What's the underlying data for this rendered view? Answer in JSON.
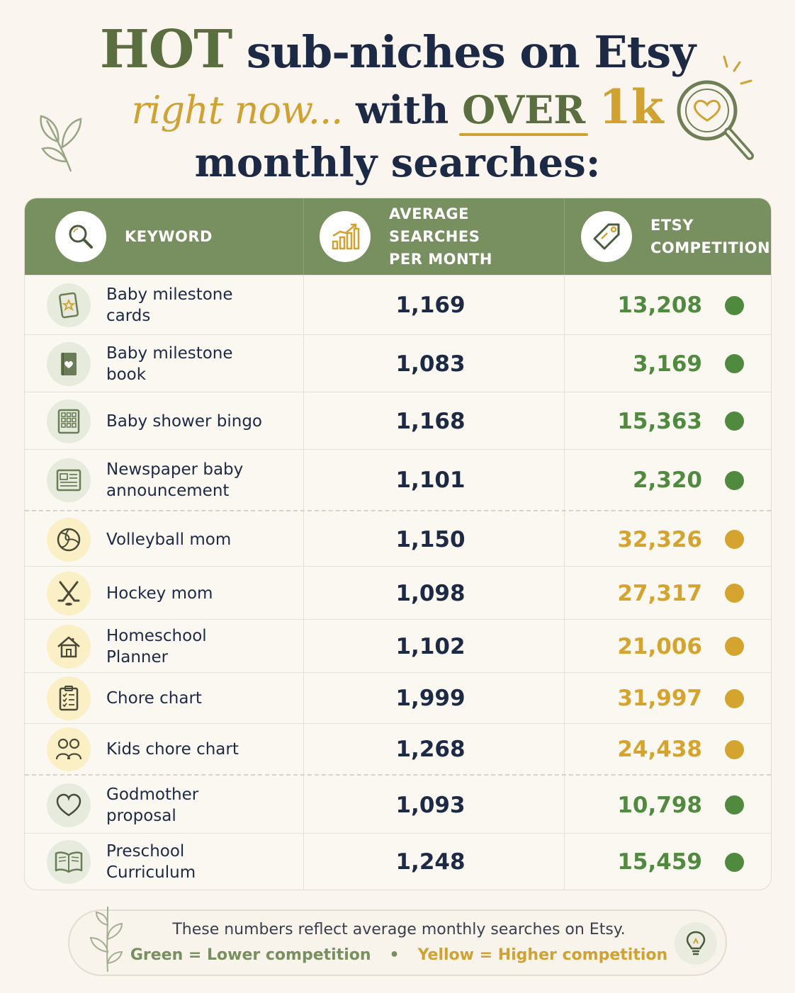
{
  "title": {
    "hot": "HOT",
    "line1_rest": "sub-niches on Etsy",
    "script": "right now...",
    "with": "with",
    "over": "OVER",
    "onek": "1k",
    "line3": "monthly searches:"
  },
  "table": {
    "headers": {
      "keyword": "KEYWORD",
      "avg_line1": "AVERAGE SEARCHES",
      "avg_line2": "PER MONTH",
      "comp_line1": "ETSY",
      "comp_line2": "COMPETITION"
    },
    "rows": [
      {
        "keyword": "Baby milestone cards",
        "avg": "1,169",
        "comp": "13,208",
        "level": "green",
        "icon": "card-star-icon"
      },
      {
        "keyword": "Baby milestone book",
        "avg": "1,083",
        "comp": "3,169",
        "level": "green",
        "icon": "book-heart-icon"
      },
      {
        "keyword": "Baby shower bingo",
        "avg": "1,168",
        "comp": "15,363",
        "level": "green",
        "icon": "bingo-grid-icon"
      },
      {
        "keyword": "Newspaper baby announcement",
        "avg": "1,101",
        "comp": "2,320",
        "level": "green",
        "icon": "newspaper-icon"
      },
      {
        "keyword": "Volleyball mom",
        "avg": "1,150",
        "comp": "32,326",
        "level": "yellow",
        "icon": "volleyball-icon"
      },
      {
        "keyword": "Hockey mom",
        "avg": "1,098",
        "comp": "27,317",
        "level": "yellow",
        "icon": "hockey-sticks-icon"
      },
      {
        "keyword": "Homeschool Planner",
        "avg": "1,102",
        "comp": "21,006",
        "level": "yellow",
        "icon": "house-icon"
      },
      {
        "keyword": "Chore chart",
        "avg": "1,999",
        "comp": "31,997",
        "level": "yellow",
        "icon": "clipboard-checklist-icon"
      },
      {
        "keyword": "Kids chore chart",
        "avg": "1,268",
        "comp": "24,438",
        "level": "yellow",
        "icon": "kids-icon"
      },
      {
        "keyword": "Godmother proposal",
        "avg": "1,093",
        "comp": "10,798",
        "level": "green",
        "icon": "heart-icon"
      },
      {
        "keyword": "Preschool Curriculum",
        "avg": "1,248",
        "comp": "15,459",
        "level": "green",
        "icon": "open-book-icon"
      }
    ]
  },
  "footer": {
    "line1": "These numbers reflect average monthly searches on Etsy.",
    "green_label": "Green = Lower competition",
    "separator": "•",
    "yellow_label": "Yellow = Higher competition"
  },
  "colors": {
    "navy": "#1d2a45",
    "olive": "#5b6e3f",
    "header_green": "#78905f",
    "green_value": "#4f8a3f",
    "yellow_value": "#d4a42e",
    "background": "#faf6ef"
  }
}
